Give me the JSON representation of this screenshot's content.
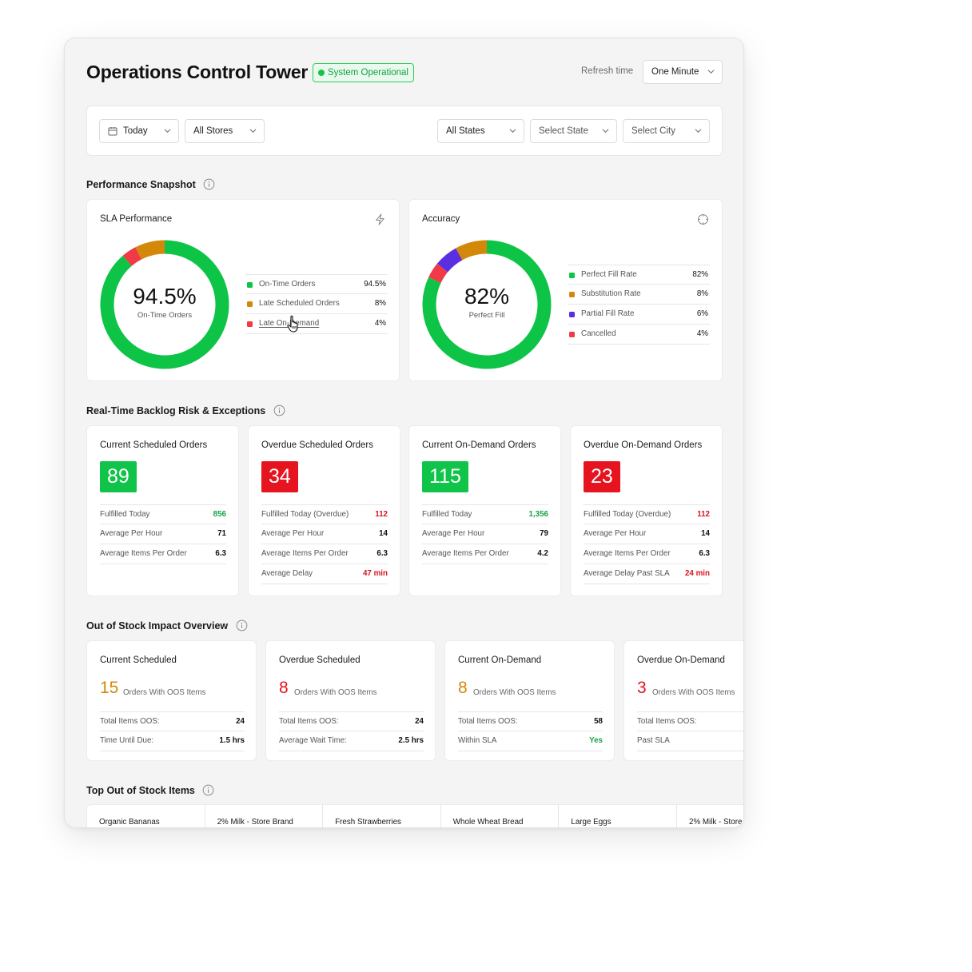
{
  "header": {
    "title": "Operations Control Tower",
    "status": "System Operational",
    "refresh_label": "Refresh time",
    "refresh_value": "One Minute"
  },
  "filters": {
    "date": "Today",
    "stores": "All Stores",
    "states": "All States",
    "state_placeholder": "Select State",
    "city_placeholder": "Select City"
  },
  "sections": {
    "performance": "Performance Snapshot",
    "backlog": "Real-Time Backlog Risk & Exceptions",
    "oos": "Out of Stock Impact Overview",
    "top_oos": "Top Out of Stock Items"
  },
  "sla": {
    "title": "SLA Performance",
    "value": "94.5%",
    "sub": "On-Time Orders",
    "legend": [
      {
        "label": "On-Time Orders",
        "value": "94.5%",
        "color": "#0ec447"
      },
      {
        "label": "Late Scheduled Orders",
        "value": "8%",
        "color": "#d4880a"
      },
      {
        "label": "Late On-Demand",
        "value": "4%",
        "color": "#f03a45"
      }
    ]
  },
  "accuracy": {
    "title": "Accuracy",
    "value": "82%",
    "sub": "Perfect Fill",
    "legend": [
      {
        "label": "Perfect Fill Rate",
        "value": "82%",
        "color": "#0ec447"
      },
      {
        "label": "Substitution Rate",
        "value": "8%",
        "color": "#d4880a"
      },
      {
        "label": "Partial Fill Rate",
        "value": "6%",
        "color": "#5a2fe0"
      },
      {
        "label": "Cancelled",
        "value": "4%",
        "color": "#f03a45"
      }
    ]
  },
  "backlog": [
    {
      "title": "Current Scheduled Orders",
      "value": "89",
      "color": "#10c44a",
      "rows": [
        [
          "Fulfilled Today",
          "856",
          "#17a347"
        ],
        [
          "Average Per Hour",
          "71",
          ""
        ],
        [
          "Average Items Per Order",
          "6.3",
          ""
        ]
      ]
    },
    {
      "title": "Overdue Scheduled Orders",
      "value": "34",
      "color": "#e5141f",
      "rows": [
        [
          "Fulfilled Today (Overdue)",
          "112",
          "#d9141e"
        ],
        [
          "Average Per Hour",
          "14",
          ""
        ],
        [
          "Average Items Per Order",
          "6.3",
          ""
        ],
        [
          "Average Delay",
          "47 min",
          "#d9141e"
        ]
      ]
    },
    {
      "title": "Current On-Demand Orders",
      "value": "115",
      "color": "#10c44a",
      "rows": [
        [
          "Fulfilled Today",
          "1,356",
          "#17a347"
        ],
        [
          "Average Per Hour",
          "79",
          ""
        ],
        [
          "Average Items Per Order",
          "4.2",
          ""
        ]
      ]
    },
    {
      "title": "Overdue On-Demand Orders",
      "value": "23",
      "color": "#e5141f",
      "rows": [
        [
          "Fulfilled Today (Overdue)",
          "112",
          "#d9141e"
        ],
        [
          "Average Per Hour",
          "14",
          ""
        ],
        [
          "Average Items Per Order",
          "6.3",
          ""
        ],
        [
          "Average Delay Past SLA",
          "24 min",
          "#d9141e"
        ]
      ]
    }
  ],
  "oos": [
    {
      "title": "Current Scheduled",
      "value": "15",
      "color": "#d4880a",
      "sub": "Orders With OOS Items",
      "rows": [
        [
          "Total Items OOS:",
          "24",
          ""
        ],
        [
          "Time Until Due:",
          "1.5 hrs",
          ""
        ]
      ]
    },
    {
      "title": "Overdue Scheduled",
      "value": "8",
      "color": "#e5141f",
      "sub": "Orders With OOS Items",
      "rows": [
        [
          "Total Items OOS:",
          "24",
          ""
        ],
        [
          "Average Wait Time:",
          "2.5 hrs",
          ""
        ]
      ]
    },
    {
      "title": "Current On-Demand",
      "value": "8",
      "color": "#d4880a",
      "sub": "Orders With OOS Items",
      "rows": [
        [
          "Total Items OOS:",
          "58",
          ""
        ],
        [
          "Within SLA",
          "Yes",
          "#17a347"
        ]
      ]
    },
    {
      "title": "Overdue On-Demand",
      "value": "3",
      "color": "#e5141f",
      "sub": "Orders With OOS Items",
      "rows": [
        [
          "Total Items OOS:",
          "",
          ""
        ],
        [
          "Past SLA",
          "",
          ""
        ]
      ]
    }
  ],
  "top_items": [
    "Organic Bananas",
    "2% Milk - Store Brand",
    "Fresh Strawberries",
    "Whole Wheat Bread",
    "Large Eggs",
    "2% Milk - Store"
  ]
}
